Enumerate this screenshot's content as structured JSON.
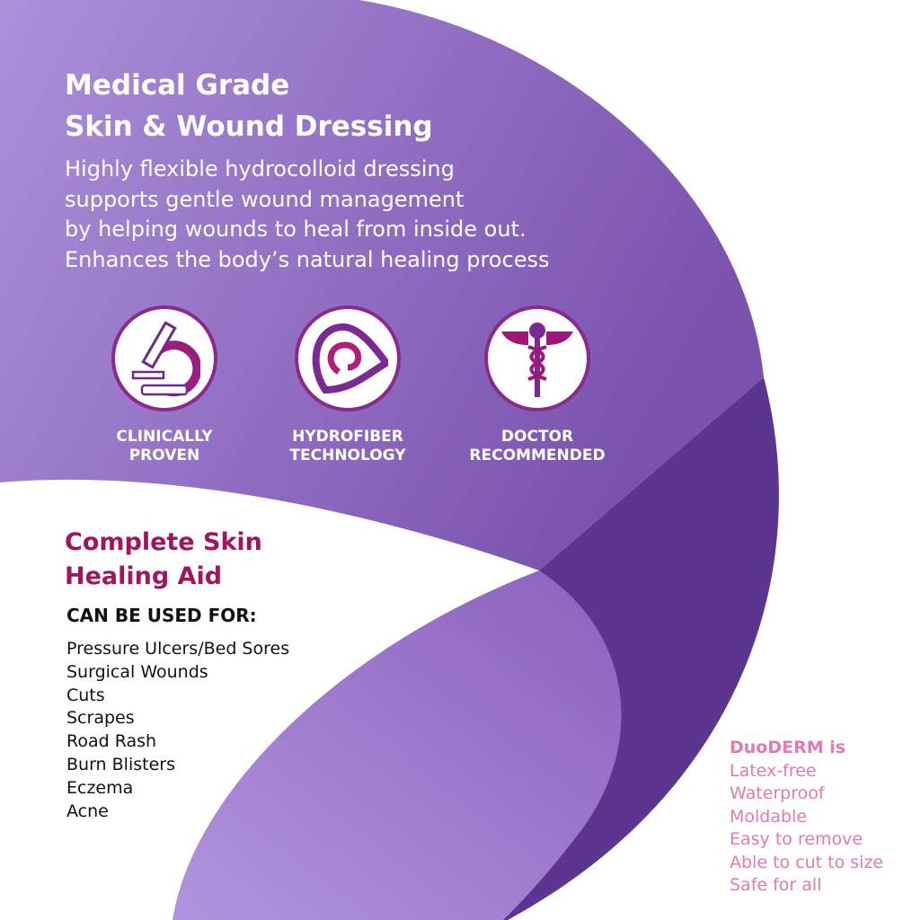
{
  "heading": {
    "line1": "Medical Grade",
    "line2": "Skin & Wound Dressing"
  },
  "description": [
    "Highly flexible hydrocolloid dressing",
    "supports gentle wound management",
    "by helping wounds to heal from inside out.",
    "Enhances the body’s natural healing process"
  ],
  "features": [
    {
      "icon": "microscope-icon",
      "line1": "CLINICALLY",
      "line2": "PROVEN"
    },
    {
      "icon": "hydrofiber-swirl-icon",
      "line1": "HYDROFIBER",
      "line2": "TECHNOLOGY"
    },
    {
      "icon": "caduceus-icon",
      "line1": "DOCTOR",
      "line2": "RECOMMENDED"
    }
  ],
  "aid": {
    "line1": "Complete Skin",
    "line2": "Healing Aid"
  },
  "uses_heading": "CAN BE USED FOR:",
  "uses": [
    "Pressure Ulcers/Bed Sores",
    "Surgical Wounds",
    "Cuts",
    "Scrapes",
    "Road Rash",
    "Burn Blisters",
    "Eczema",
    "Acne"
  ],
  "properties": {
    "heading": "DuoDERM is",
    "items": [
      "Latex-free",
      "Waterproof",
      "Moldable",
      "Easy to remove",
      "Able to cut to size",
      "Safe for all"
    ]
  },
  "colors": {
    "purple_light": "#ab8ed9",
    "purple_mid": "#7e57b2",
    "purple_dark": "#5c3590",
    "magenta": "#a0155f",
    "pink": "#e07ab0"
  }
}
